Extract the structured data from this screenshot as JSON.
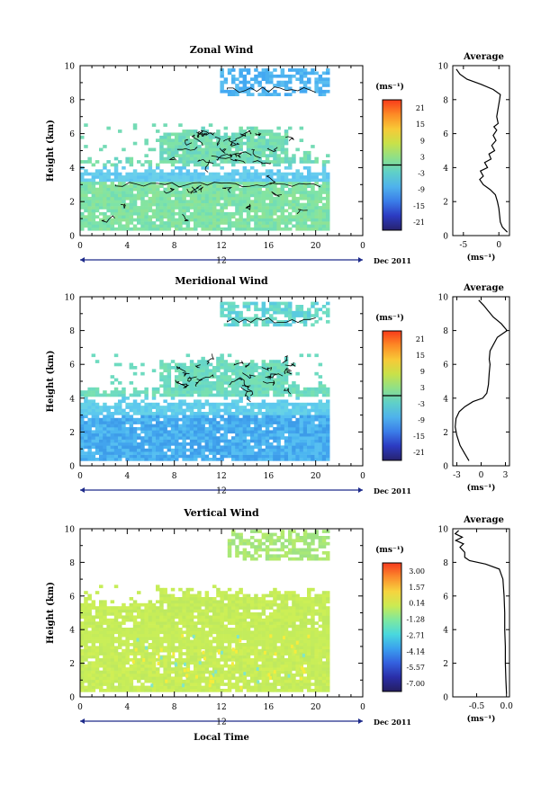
{
  "chart_data": [
    {
      "type": "heatmap",
      "title": "Zonal Wind",
      "ylabel": "Height (km)",
      "ylim": [
        0,
        10
      ],
      "yticks": [
        "0",
        "2",
        "4",
        "6",
        "8",
        "10"
      ],
      "xticks": [
        "0",
        "4",
        "8",
        "12",
        "16",
        "20",
        "0"
      ],
      "date_marker": "12",
      "date_label": "Dec 2011",
      "colorbar": {
        "unit_label": "(ms⁻¹)",
        "ticks": [
          "21",
          "15",
          "9",
          "3",
          "-3",
          "-9",
          "-15",
          "-21"
        ],
        "zero_line": true
      },
      "profile": {
        "title": "Average",
        "xlabel": "(ms⁻¹)",
        "xticks": [
          "-5",
          "0"
        ],
        "xlim": [
          -6.5,
          1.5
        ],
        "ylim": [
          0,
          10
        ],
        "yticks": [
          "0",
          "2",
          "4",
          "6",
          "8",
          "10"
        ],
        "points": [
          [
            1.2,
            0.2
          ],
          [
            0.5,
            0.5
          ],
          [
            0.2,
            0.8
          ],
          [
            0.1,
            1.2
          ],
          [
            0.0,
            1.6
          ],
          [
            -0.2,
            2.0
          ],
          [
            -0.5,
            2.4
          ],
          [
            -1.2,
            2.7
          ],
          [
            -2.2,
            3.0
          ],
          [
            -2.7,
            3.3
          ],
          [
            -2.2,
            3.5
          ],
          [
            -2.6,
            3.8
          ],
          [
            -1.6,
            4.0
          ],
          [
            -2.0,
            4.3
          ],
          [
            -1.1,
            4.5
          ],
          [
            -1.4,
            4.8
          ],
          [
            -0.6,
            5.0
          ],
          [
            -1.0,
            5.3
          ],
          [
            -0.4,
            5.6
          ],
          [
            -0.8,
            5.9
          ],
          [
            -0.3,
            6.2
          ],
          [
            -0.7,
            6.4
          ],
          [
            -0.1,
            6.6
          ],
          [
            -0.3,
            7.0
          ],
          [
            -0.1,
            7.5
          ],
          [
            0.1,
            8.0
          ],
          [
            0.2,
            8.3
          ],
          [
            -0.8,
            8.6
          ],
          [
            -2.5,
            8.9
          ],
          [
            -4.5,
            9.2
          ],
          [
            -5.5,
            9.5
          ],
          [
            -6.0,
            9.8
          ]
        ]
      }
    },
    {
      "type": "heatmap",
      "title": "Meridional Wind",
      "ylabel": "Height (km)",
      "ylim": [
        0,
        10
      ],
      "yticks": [
        "0",
        "2",
        "4",
        "6",
        "8",
        "10"
      ],
      "xticks": [
        "0",
        "4",
        "8",
        "12",
        "16",
        "20",
        "0"
      ],
      "date_marker": "12",
      "date_label": "Dec 2011",
      "colorbar": {
        "unit_label": "(ms⁻¹)",
        "ticks": [
          "21",
          "15",
          "9",
          "3",
          "-3",
          "-9",
          "-15",
          "-21"
        ],
        "zero_line": true
      },
      "profile": {
        "title": "Average",
        "xlabel": "(ms⁻¹)",
        "xticks": [
          "-3",
          "0",
          "3"
        ],
        "xlim": [
          -3.5,
          3.5
        ],
        "ylim": [
          0,
          10
        ],
        "yticks": [
          "0",
          "2",
          "4",
          "6",
          "8",
          "10"
        ],
        "points": [
          [
            -1.5,
            0.3
          ],
          [
            -2.0,
            0.7
          ],
          [
            -2.6,
            1.2
          ],
          [
            -3.0,
            1.8
          ],
          [
            -3.2,
            2.3
          ],
          [
            -3.1,
            2.8
          ],
          [
            -2.7,
            3.2
          ],
          [
            -2.0,
            3.5
          ],
          [
            -1.0,
            3.8
          ],
          [
            0.2,
            4.0
          ],
          [
            0.7,
            4.3
          ],
          [
            0.9,
            4.8
          ],
          [
            1.0,
            5.5
          ],
          [
            1.1,
            6.0
          ],
          [
            1.0,
            6.3
          ],
          [
            1.1,
            6.8
          ],
          [
            2.0,
            7.6
          ],
          [
            3.2,
            8.0
          ],
          [
            2.5,
            8.4
          ],
          [
            1.5,
            8.8
          ],
          [
            0.8,
            9.2
          ],
          [
            0.3,
            9.5
          ],
          [
            -0.3,
            9.8
          ]
        ]
      }
    },
    {
      "type": "heatmap",
      "title": "Vertical Wind",
      "ylabel": "Height (km)",
      "xlabel": "Local Time",
      "ylim": [
        0,
        10
      ],
      "yticks": [
        "0",
        "2",
        "4",
        "6",
        "8",
        "10"
      ],
      "xticks": [
        "0",
        "4",
        "8",
        "12",
        "16",
        "20",
        "0"
      ],
      "date_marker": "12",
      "date_label": "Dec 2011",
      "colorbar": {
        "unit_label": "(ms⁻¹)",
        "ticks": [
          "3.00",
          "1.57",
          "0.14",
          "-1.28",
          "-2.71",
          "-4.14",
          "-5.57",
          "-7.00"
        ],
        "zero_line": false
      },
      "profile": {
        "title": "Average",
        "xlabel": "(ms⁻¹)",
        "xticks": [
          "-0.5",
          "0.0"
        ],
        "xlim": [
          -0.9,
          0.05
        ],
        "ylim": [
          0,
          10
        ],
        "yticks": [
          "0",
          "2",
          "4",
          "6",
          "8",
          "10"
        ],
        "points": [
          [
            0.0,
            0.2
          ],
          [
            -0.01,
            1.0
          ],
          [
            -0.02,
            2.0
          ],
          [
            -0.02,
            3.0
          ],
          [
            -0.03,
            4.0
          ],
          [
            -0.03,
            5.0
          ],
          [
            -0.04,
            6.0
          ],
          [
            -0.06,
            7.0
          ],
          [
            -0.12,
            7.6
          ],
          [
            -0.35,
            7.9
          ],
          [
            -0.62,
            8.1
          ],
          [
            -0.7,
            8.3
          ],
          [
            -0.7,
            8.6
          ],
          [
            -0.78,
            8.9
          ],
          [
            -0.72,
            9.1
          ],
          [
            -0.85,
            9.3
          ],
          [
            -0.74,
            9.5
          ],
          [
            -0.86,
            9.7
          ],
          [
            -0.8,
            9.9
          ]
        ]
      }
    }
  ]
}
